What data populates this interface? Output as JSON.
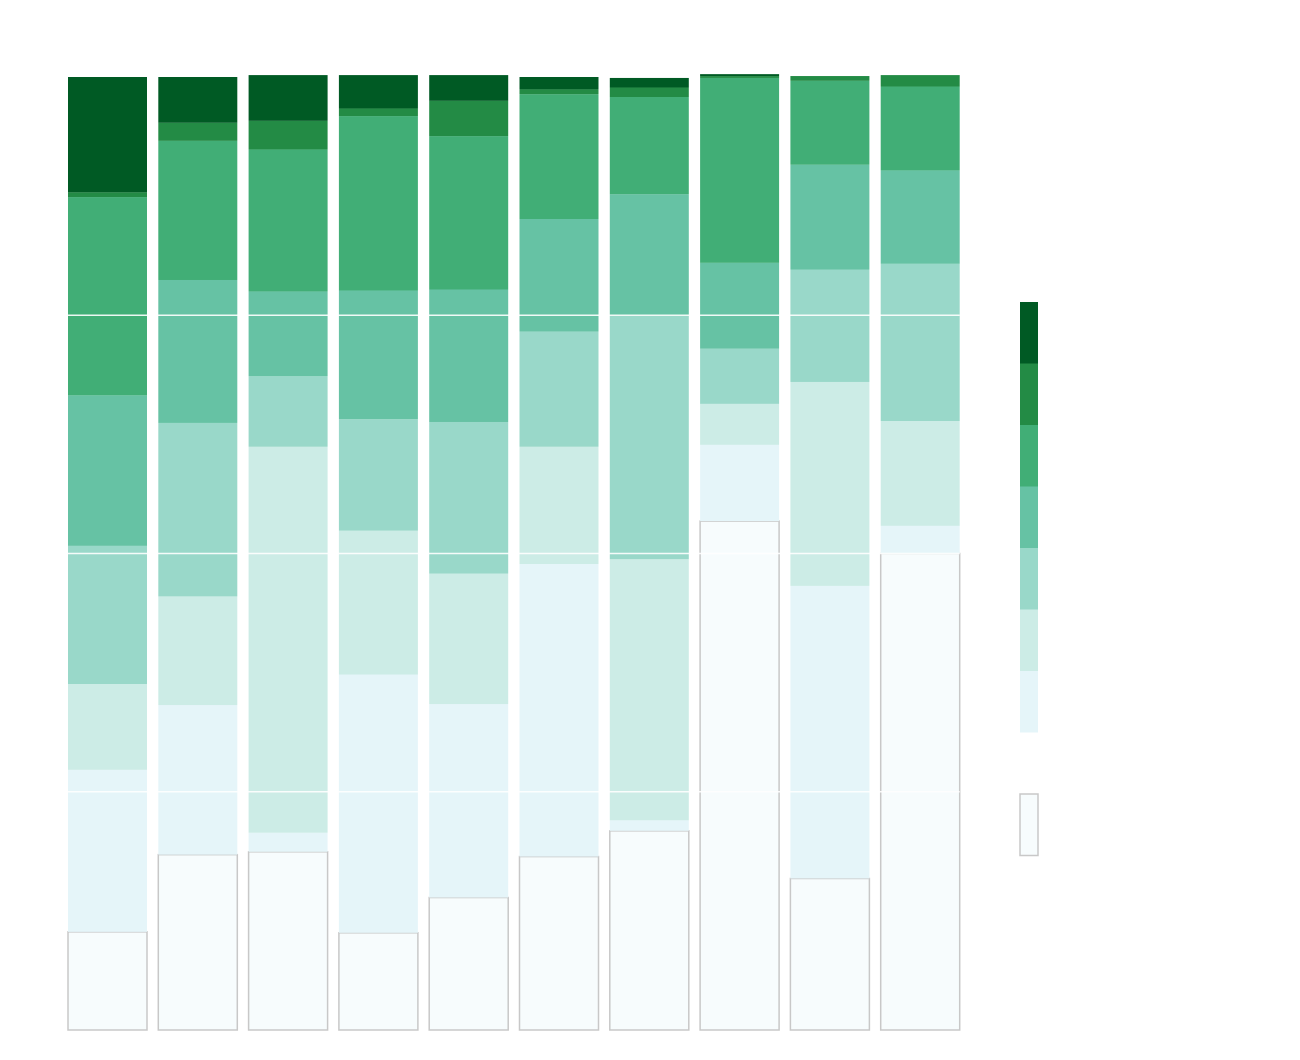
{
  "chart_data": {
    "type": "bar",
    "stacked": true,
    "normalized": true,
    "title": "",
    "xlabel": "",
    "ylabel": "",
    "ylim": [
      0,
      100
    ],
    "grid": true,
    "legend_position": "right",
    "categories": [
      "",
      "",
      "",
      "",
      "",
      "",
      "",
      "",
      "",
      ""
    ],
    "series": [
      {
        "color": "#f7fcfd",
        "outlined": true,
        "values": [
          10.3,
          18.4,
          18.7,
          10.2,
          13.9,
          18.2,
          20.9,
          53.4,
          15.9,
          50.0
        ]
      },
      {
        "color": "#e5f5f9",
        "values": [
          17.0,
          15.7,
          2.0,
          27.1,
          20.3,
          30.7,
          1.1,
          8.0,
          30.7,
          2.9
        ]
      },
      {
        "color": "#ccece6",
        "values": [
          9.0,
          11.4,
          40.5,
          15.1,
          13.7,
          12.3,
          27.4,
          4.3,
          21.4,
          11.0
        ]
      },
      {
        "color": "#99d8c9",
        "values": [
          14.5,
          18.2,
          7.4,
          11.7,
          15.9,
          12.1,
          25.5,
          5.8,
          11.8,
          16.5
        ]
      },
      {
        "color": "#66c2a4",
        "values": [
          15.8,
          15.0,
          8.9,
          13.5,
          13.9,
          11.8,
          12.8,
          9.0,
          11.0,
          9.8
        ]
      },
      {
        "color": "#41ae76",
        "values": [
          20.8,
          14.6,
          14.9,
          18.3,
          16.1,
          13.1,
          10.2,
          19.4,
          8.8,
          8.8
        ]
      },
      {
        "color": "#238b45",
        "values": [
          0.5,
          1.9,
          3.0,
          0.8,
          3.7,
          0.5,
          1.0,
          0.2,
          0.5,
          1.2
        ]
      },
      {
        "color": "#005a24",
        "values": [
          12.1,
          4.8,
          4.8,
          3.5,
          2.7,
          1.3,
          1.0,
          0.2,
          0.0,
          0.0
        ]
      }
    ],
    "legend": [
      {
        "color": "#005a24",
        "label": ""
      },
      {
        "color": "#238b45",
        "label": ""
      },
      {
        "color": "#41ae76",
        "label": ""
      },
      {
        "color": "#66c2a4",
        "label": ""
      },
      {
        "color": "#99d8c9",
        "label": ""
      },
      {
        "color": "#ccece6",
        "label": ""
      },
      {
        "color": "#e5f5f9",
        "label": ""
      },
      {
        "color": "#f7fcfd",
        "label": "",
        "outlined": true,
        "separated": true
      }
    ]
  }
}
